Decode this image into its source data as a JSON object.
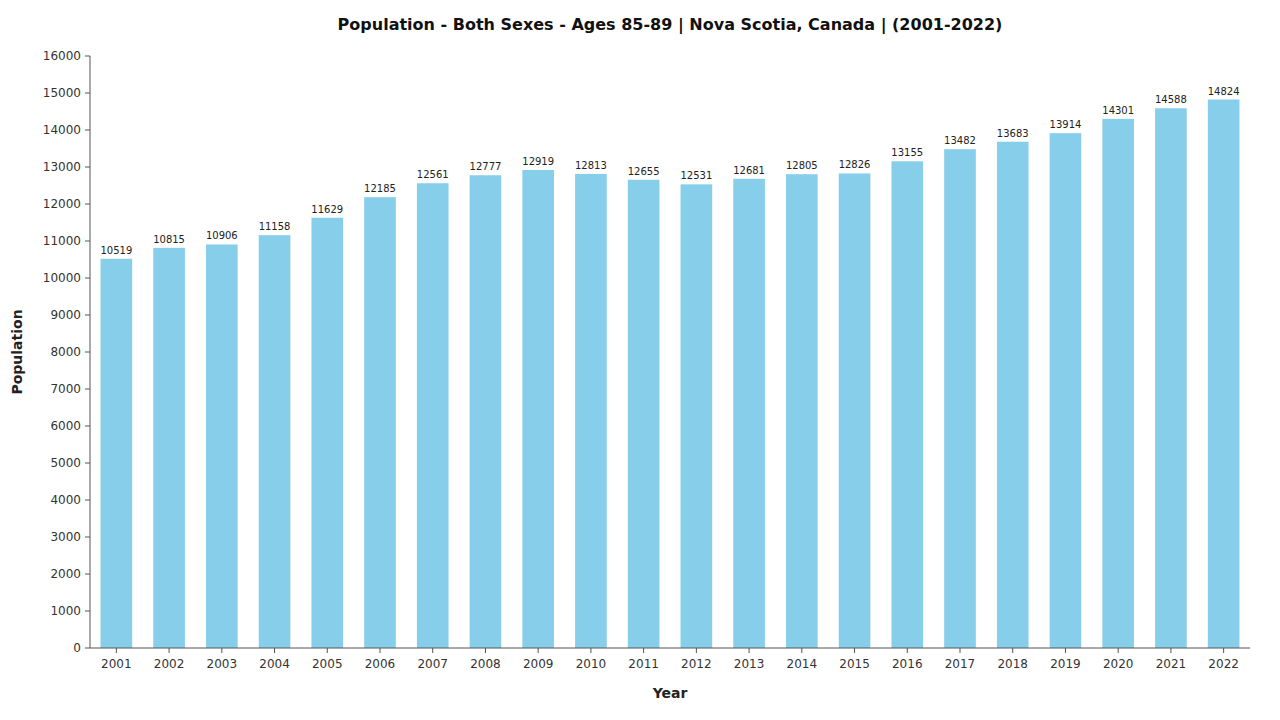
{
  "chart_data": {
    "type": "bar",
    "title": "Population - Both Sexes - Ages 85-89 | Nova Scotia, Canada |  (2001-2022)",
    "xlabel": "Year",
    "ylabel": "Population",
    "categories": [
      "2001",
      "2002",
      "2003",
      "2004",
      "2005",
      "2006",
      "2007",
      "2008",
      "2009",
      "2010",
      "2011",
      "2012",
      "2013",
      "2014",
      "2015",
      "2016",
      "2017",
      "2018",
      "2019",
      "2020",
      "2021",
      "2022"
    ],
    "values": [
      10519,
      10815,
      10906,
      11158,
      11629,
      12185,
      12561,
      12777,
      12919,
      12813,
      12655,
      12531,
      12681,
      12805,
      12826,
      13155,
      13482,
      13683,
      13914,
      14301,
      14588,
      14824
    ],
    "color": "#87CEEB",
    "ylim": [
      0,
      16000
    ],
    "yticks": [
      0,
      1000,
      2000,
      3000,
      4000,
      5000,
      6000,
      7000,
      8000,
      9000,
      10000,
      11000,
      12000,
      13000,
      14000,
      15000,
      16000
    ],
    "grid": false,
    "data_labels": true
  }
}
